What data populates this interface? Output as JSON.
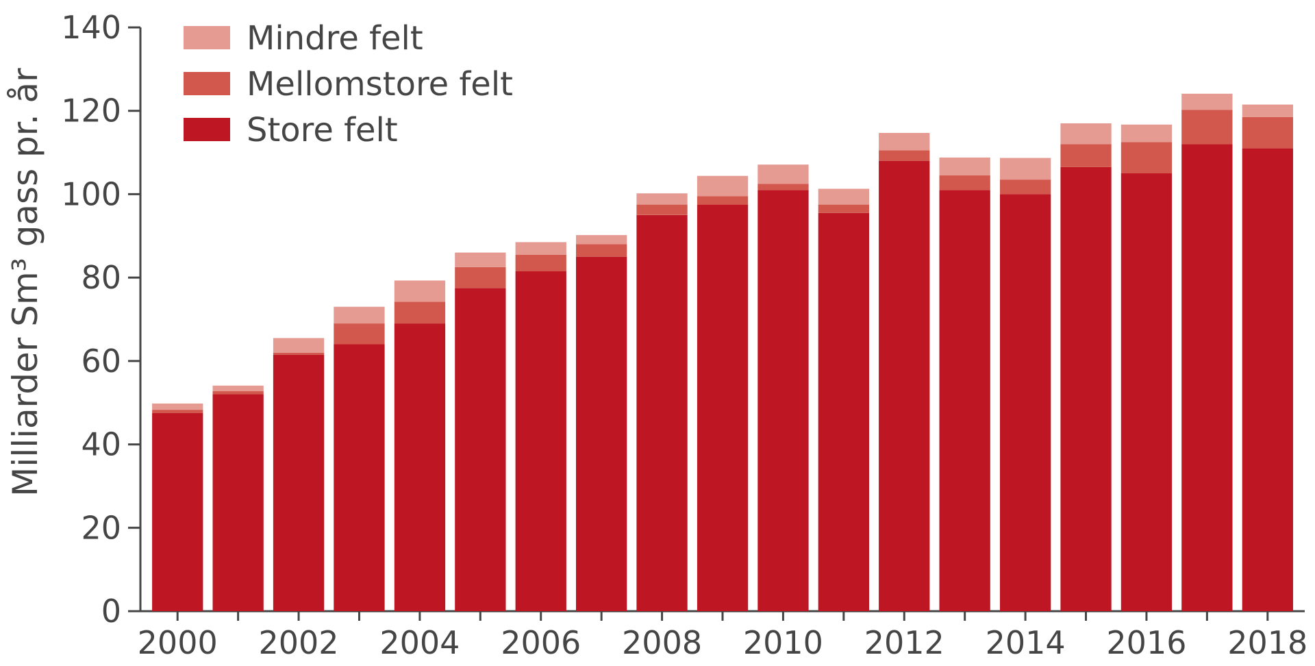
{
  "chart_data": {
    "type": "bar",
    "stacked": true,
    "ylabel": "Milliarder Sm³ gass pr. år",
    "xlabel": "",
    "ylim": [
      0,
      140
    ],
    "yticks": [
      "0",
      "20",
      "40",
      "60",
      "80",
      "100",
      "120",
      "140"
    ],
    "categories": [
      "2000",
      "2001",
      "2002",
      "2003",
      "2004",
      "2005",
      "2006",
      "2007",
      "2008",
      "2009",
      "2010",
      "2011",
      "2012",
      "2013",
      "2014",
      "2015",
      "2016",
      "2017",
      "2018"
    ],
    "xtick_labels": [
      "2000",
      "2002",
      "2004",
      "2006",
      "2008",
      "2010",
      "2012",
      "2014",
      "2016",
      "2018"
    ],
    "legend": {
      "placement": "top-left",
      "order": [
        "Mindre felt",
        "Mellomstore felt",
        "Store felt"
      ]
    },
    "series": [
      {
        "name": "Store felt",
        "color": "#be1622",
        "values": [
          47.5,
          52,
          61.5,
          64,
          69,
          77.5,
          81.5,
          85,
          95,
          97.5,
          101,
          95.5,
          108,
          101,
          100,
          106.5,
          105,
          112,
          111
        ]
      },
      {
        "name": "Mellomstore felt",
        "color": "#d2574d",
        "values": [
          0.8,
          0.8,
          0.5,
          5,
          5.2,
          5,
          4,
          3,
          2.5,
          2,
          1.5,
          2,
          2.5,
          3.5,
          3.5,
          5.5,
          7.5,
          8.2,
          7.5
        ]
      },
      {
        "name": "Mindre felt",
        "color": "#e59b92",
        "values": [
          1.5,
          1.3,
          3.5,
          4,
          5.1,
          3.5,
          3,
          2.2,
          2.7,
          4.9,
          4.6,
          3.8,
          4.2,
          4.3,
          5.2,
          5,
          4.2,
          3.9,
          3
        ]
      }
    ]
  }
}
